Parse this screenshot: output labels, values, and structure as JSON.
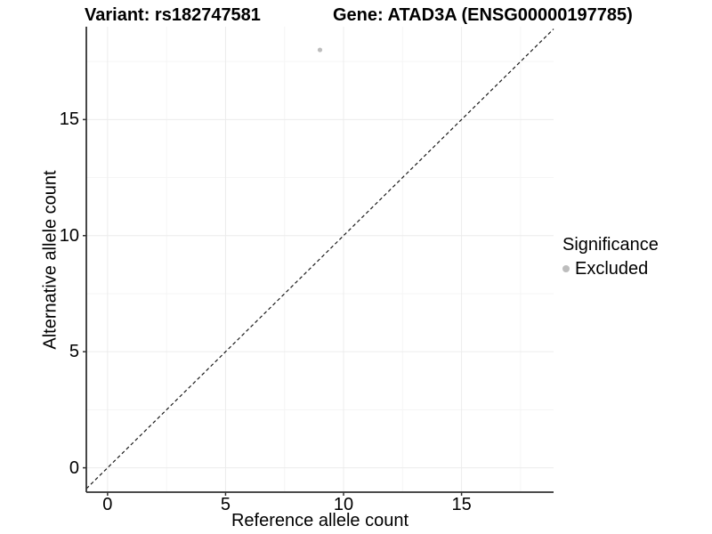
{
  "figure": {
    "title_variant": "Variant: rs182747581",
    "title_gene": "Gene: ATAD3A (ENSG00000197785)"
  },
  "chart_data": {
    "type": "scatter",
    "title": "Variant: rs182747581 — Gene: ATAD3A (ENSG00000197785)",
    "xlabel": "Reference allele count",
    "ylabel": "Alternative allele count",
    "xlim": [
      -0.9,
      18.9
    ],
    "ylim": [
      -1.05,
      19.0
    ],
    "xticks": [
      0,
      5,
      10,
      15
    ],
    "yticks": [
      0,
      5,
      10,
      15
    ],
    "minor_xticks": [
      2.5,
      7.5,
      12.5,
      17.5
    ],
    "minor_yticks": [
      2.5,
      7.5,
      12.5,
      17.5
    ],
    "grid": "major+minor",
    "series": [
      {
        "name": "Excluded",
        "color": "#bdbdbd",
        "marker": "circle",
        "points": [
          {
            "x": 9,
            "y": 18
          }
        ]
      }
    ],
    "reference_line": {
      "type": "identity",
      "equation": "y = x",
      "style": "dashed",
      "color": "#1a1a1a"
    },
    "legend": {
      "title": "Significance",
      "position": "right",
      "items": [
        {
          "label": "Excluded",
          "color": "#bdbdbd",
          "marker": "circle"
        }
      ]
    },
    "colors": {
      "background": "#ffffff",
      "axis_line": "#333333",
      "grid_major": "#ececec",
      "grid_minor": "#f5f5f5",
      "text": "#000000",
      "point": "#bdbdbd"
    }
  }
}
